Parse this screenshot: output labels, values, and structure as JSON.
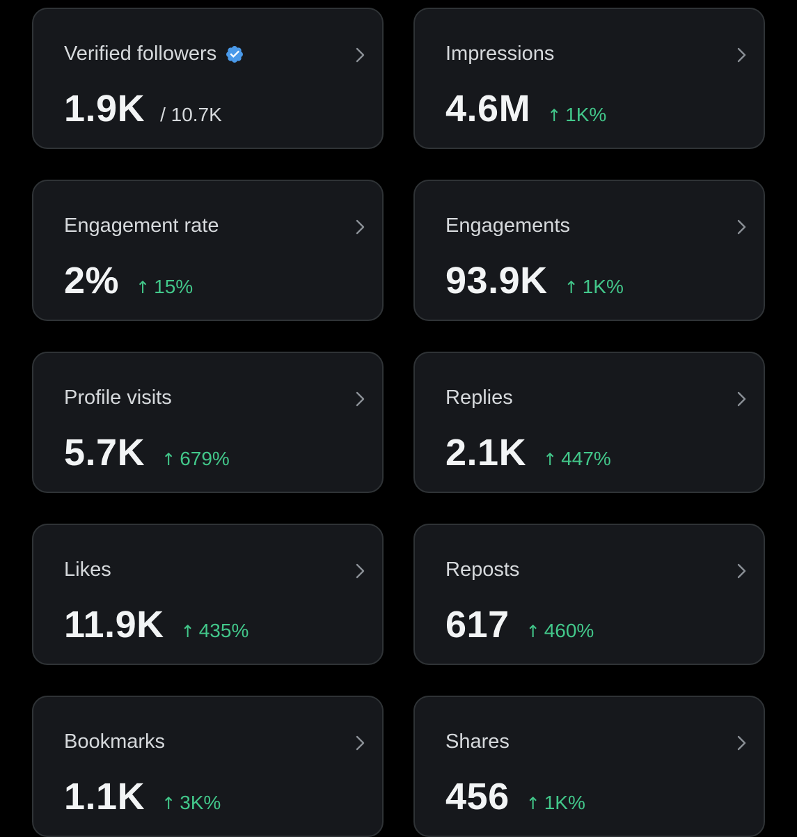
{
  "colors": {
    "background": "#000000",
    "card": "#16181c",
    "card_border": "#2f3336",
    "positive": "#42c78a",
    "verified": "#4a99e9"
  },
  "cards": [
    {
      "title": "Verified followers",
      "value": "1.9K",
      "total": "/ 10.7K",
      "icon": "verified-badge-icon"
    },
    {
      "title": "Impressions",
      "value": "4.6M",
      "arrow": "↑",
      "change": "1K%"
    },
    {
      "title": "Engagement rate",
      "value": "2%",
      "arrow": "↑",
      "change": "15%"
    },
    {
      "title": "Engagements",
      "value": "93.9K",
      "arrow": "↑",
      "change": "1K%"
    },
    {
      "title": "Profile visits",
      "value": "5.7K",
      "arrow": "↑",
      "change": "679%"
    },
    {
      "title": "Replies",
      "value": "2.1K",
      "arrow": "↑",
      "change": "447%"
    },
    {
      "title": "Likes",
      "value": "11.9K",
      "arrow": "↑",
      "change": "435%"
    },
    {
      "title": "Reposts",
      "value": "617",
      "arrow": "↑",
      "change": "460%"
    },
    {
      "title": "Bookmarks",
      "value": "1.1K",
      "arrow": "↑",
      "change": "3K%"
    },
    {
      "title": "Shares",
      "value": "456",
      "arrow": "↑",
      "change": "1K%"
    }
  ]
}
